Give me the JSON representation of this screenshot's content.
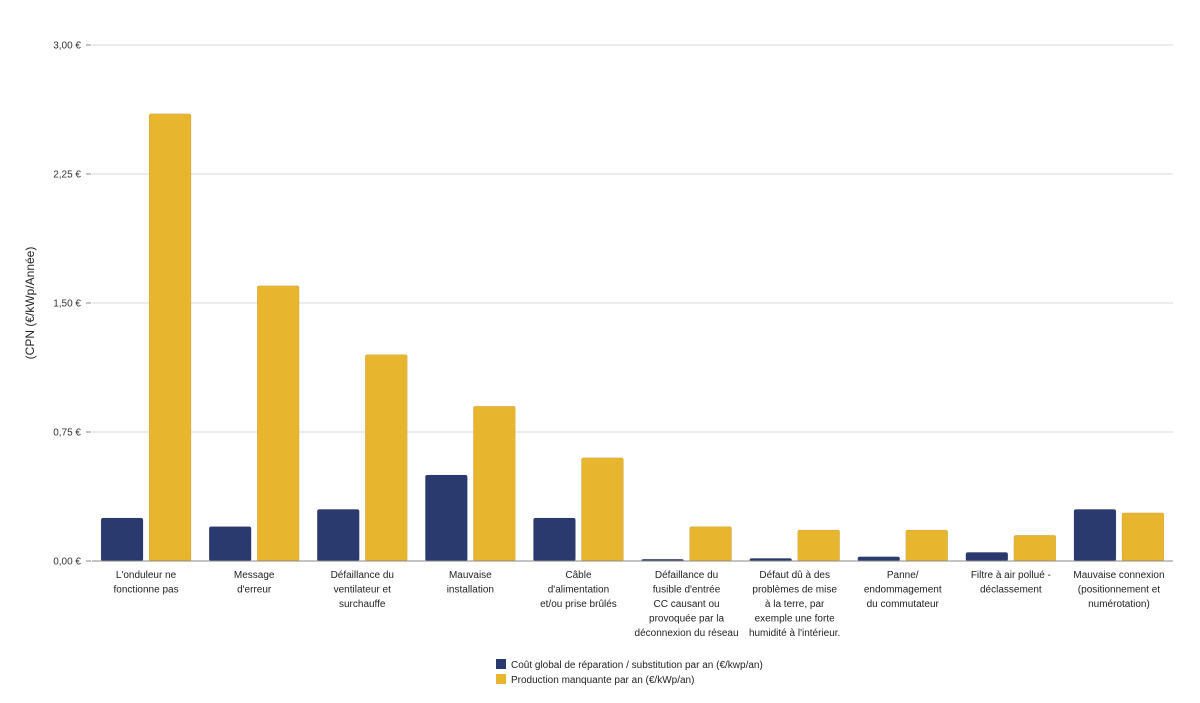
{
  "chart_data": {
    "type": "bar",
    "ylabel": "(CPN (€/kWp/Année)",
    "ylim": [
      0,
      3
    ],
    "yticks": [
      0,
      0.75,
      1.5,
      2.25,
      3
    ],
    "ytick_labels": [
      "0,00 €",
      "0,75 €",
      "1,50 €",
      "2,25 €",
      "3,00 €"
    ],
    "categories": [
      [
        "L'onduleur ne",
        "fonctionne pas"
      ],
      [
        "Message",
        "d'erreur"
      ],
      [
        "Défaillance du",
        "ventilateur et",
        "surchauffe"
      ],
      [
        "Mauvaise",
        "installation"
      ],
      [
        "Câble",
        "d'alimentation",
        "et/ou prise brûlés"
      ],
      [
        "Défaillance du",
        "fusible d'entrée",
        "CC causant ou",
        "provoquée par la",
        "déconnexion du réseau"
      ],
      [
        "Défaut dû à des",
        "problèmes de mise",
        "à la terre, par",
        "exemple une forte",
        "humidité à l'intérieur."
      ],
      [
        "Panne/",
        "endommagement",
        "du commutateur"
      ],
      [
        "Filtre à air pollué -",
        "déclassement"
      ],
      [
        "Mauvaise connexion",
        "(positionnement et",
        "numérotation)"
      ]
    ],
    "series": [
      {
        "name": "Coût global de réparation / substitution par an (€/kwp/an)",
        "color": "#2b3a6e",
        "values": [
          0.25,
          0.2,
          0.3,
          0.5,
          0.25,
          0.01,
          0.015,
          0.025,
          0.05,
          0.3
        ]
      },
      {
        "name": "Production manquante par an (€/kWp/an)",
        "color": "#e8b52f",
        "values": [
          2.6,
          1.6,
          1.2,
          0.9,
          0.6,
          0.2,
          0.18,
          0.18,
          0.15,
          0.28
        ]
      }
    ],
    "grid": true,
    "legend_position": "bottom-center"
  }
}
